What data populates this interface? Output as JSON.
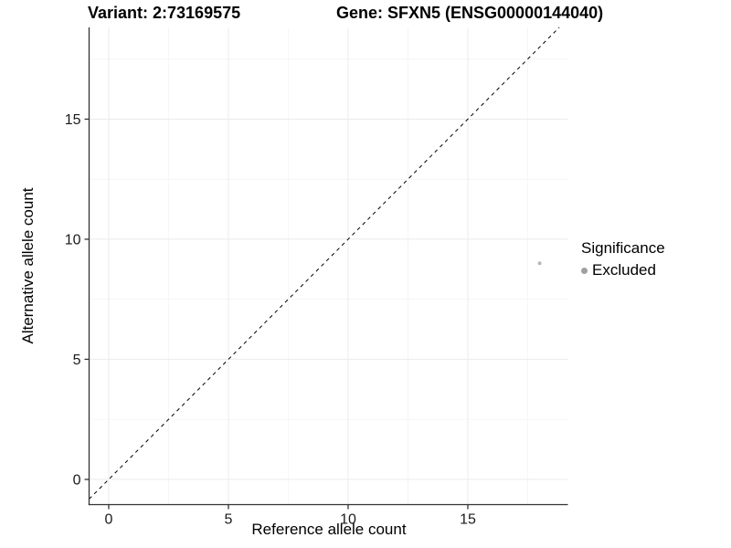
{
  "chart_data": {
    "type": "scatter",
    "title_left": "Variant: 2:73169575",
    "title_right": "Gene: SFXN5 (ENSG00000144040)",
    "xlabel": "Reference allele count",
    "ylabel": "Alternative allele count",
    "xlim": [
      -0.82,
      19.18
    ],
    "ylim": [
      -1.05,
      18.82
    ],
    "x_ticks": [
      0,
      5,
      10,
      15
    ],
    "y_ticks": [
      0,
      5,
      10,
      15
    ],
    "x_minor_ticks": [
      2.5,
      7.5,
      12.5,
      17.5
    ],
    "y_minor_ticks": [
      2.5,
      7.5,
      12.5,
      17.5
    ],
    "grid": "major+minor",
    "legend_position": "right",
    "series": [
      {
        "name": "Excluded",
        "marker": "circle",
        "marker_color": "#b8b8b8",
        "marker_radius": 2,
        "points": [
          {
            "x": 18,
            "y": 9
          }
        ]
      }
    ],
    "reference_line": {
      "kind": "identity",
      "slope": 1,
      "intercept": 0,
      "line_style": "dashed",
      "color": "#000000"
    },
    "legend": {
      "title": "Significance",
      "items": [
        {
          "label": "Excluded",
          "color": "#a0a0a0"
        }
      ]
    },
    "colors": {
      "background": "#ffffff",
      "axis_line": "#333333",
      "tick_mark": "#333333",
      "tick_label": "#1a1a1a",
      "grid_major": "#ebebeb",
      "grid_minor": "#f6f6f6"
    }
  }
}
